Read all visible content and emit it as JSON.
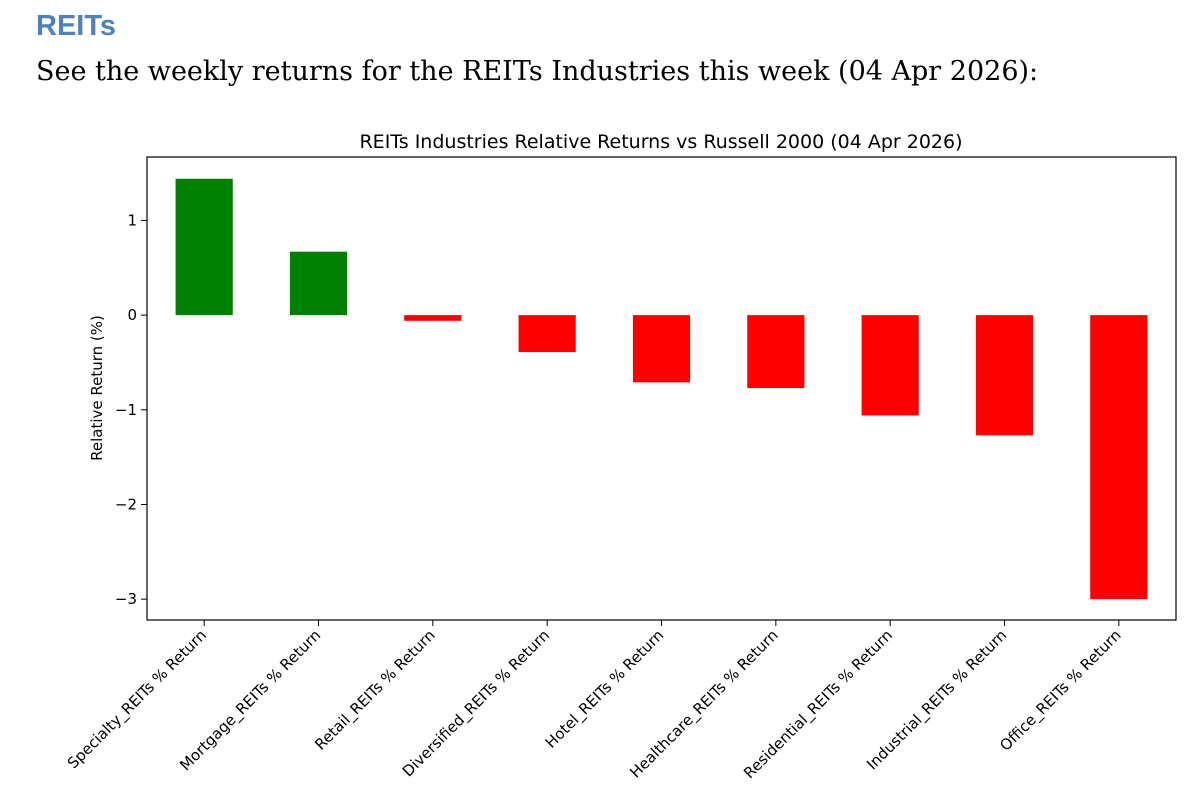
{
  "page": {
    "heading": "REITs",
    "intro": "See the weekly returns for the REITs Industries this week (04 Apr 2026):"
  },
  "colors": {
    "heading": "#4f81bd",
    "positive": "#008000",
    "negative": "#ff0000"
  },
  "chart_data": {
    "type": "bar",
    "title": "REITs Industries Relative Returns vs Russell 2000 (04 Apr 2026)",
    "xlabel": "",
    "ylabel": "Relative Return (%)",
    "ylim": [
      -3.22,
      1.67
    ],
    "yticks": [
      1,
      0,
      -1,
      -2,
      -3
    ],
    "ytick_labels": [
      "1",
      "0",
      "−1",
      "−2",
      "−3"
    ],
    "grid": false,
    "legend": "none",
    "categories": [
      "Specialty_REITs % Return",
      "Mortgage_REITs % Return",
      "Retail_REITs % Return",
      "Diversified_REITs % Return",
      "Hotel_REITs % Return",
      "Healthcare_REITs % Return",
      "Residential_REITs % Return",
      "Industrial_REITs % Return",
      "Office_REITs % Return"
    ],
    "values": [
      1.44,
      0.67,
      -0.06,
      -0.39,
      -0.71,
      -0.77,
      -1.06,
      -1.27,
      -3.0
    ]
  }
}
